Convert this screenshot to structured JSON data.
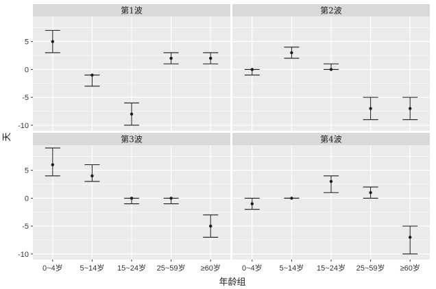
{
  "chart_data": {
    "type": "errorbar",
    "xlabel": "年龄组",
    "ylabel": "天",
    "categories": [
      "0~4岁",
      "5~14岁",
      "15~24岁",
      "25~59岁",
      "≥60岁"
    ],
    "ylim": [
      -11,
      9.5
    ],
    "yticks": [
      -10,
      -5,
      0,
      5
    ],
    "grid": true,
    "panels": [
      {
        "label": "第1波",
        "points": [
          {
            "category": "0~4岁",
            "y": 5,
            "low": 3,
            "high": 7
          },
          {
            "category": "5~14岁",
            "y": -1,
            "low": -3,
            "high": -1
          },
          {
            "category": "15~24岁",
            "y": -8,
            "low": -10,
            "high": -6
          },
          {
            "category": "25~59岁",
            "y": 2,
            "low": 1,
            "high": 3
          },
          {
            "category": "≥60岁",
            "y": 2,
            "low": 1,
            "high": 3
          }
        ]
      },
      {
        "label": "第2波",
        "points": [
          {
            "category": "0~4岁",
            "y": 0,
            "low": -1,
            "high": 0
          },
          {
            "category": "5~14岁",
            "y": 3,
            "low": 2,
            "high": 4
          },
          {
            "category": "15~24岁",
            "y": 0,
            "low": 0,
            "high": 1
          },
          {
            "category": "25~59岁",
            "y": -7,
            "low": -9,
            "high": -5
          },
          {
            "category": "≥60岁",
            "y": -7,
            "low": -9,
            "high": -5
          }
        ]
      },
      {
        "label": "第3波",
        "points": [
          {
            "category": "0~4岁",
            "y": 6,
            "low": 4,
            "high": 9
          },
          {
            "category": "5~14岁",
            "y": 4,
            "low": 3,
            "high": 6
          },
          {
            "category": "15~24岁",
            "y": 0,
            "low": -1,
            "high": 0
          },
          {
            "category": "25~59岁",
            "y": 0,
            "low": -1,
            "high": 0
          },
          {
            "category": "≥60岁",
            "y": -5,
            "low": -7,
            "high": -3
          }
        ]
      },
      {
        "label": "第4波",
        "points": [
          {
            "category": "0~4岁",
            "y": -1,
            "low": -2,
            "high": 0
          },
          {
            "category": "5~14岁",
            "y": 0,
            "low": 0,
            "high": 0
          },
          {
            "category": "15~24岁",
            "y": 3,
            "low": 1,
            "high": 4
          },
          {
            "category": "25~59岁",
            "y": 1,
            "low": 0,
            "high": 2
          },
          {
            "category": "≥60岁",
            "y": -7,
            "low": -10,
            "high": -5
          }
        ]
      }
    ],
    "colors": {
      "panel_background": "#ebebeb",
      "strip_background": "#d9d9d9",
      "gridline": "#ffffff",
      "marks": "#1a1a1a"
    }
  }
}
